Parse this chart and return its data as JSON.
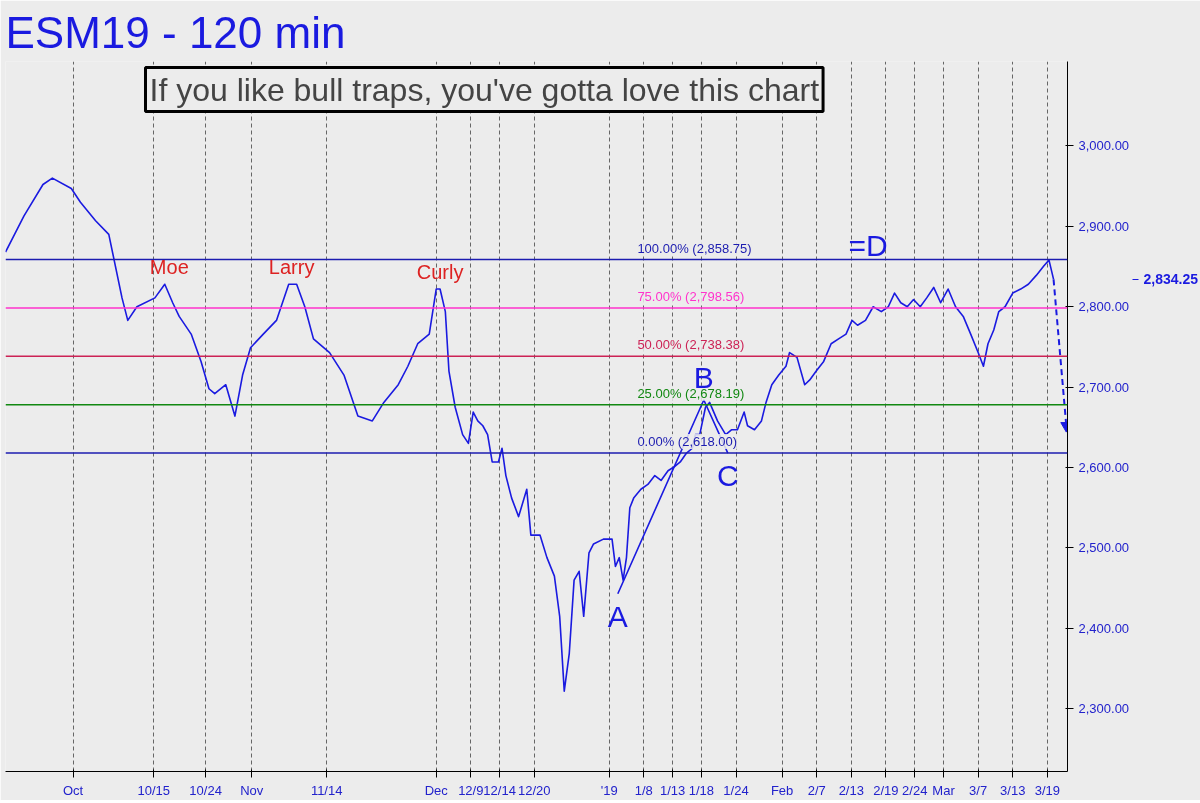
{
  "chart_data": {
    "type": "line",
    "title": "ESM19 - 120 min",
    "subtitle": "If you like bull traps, you've gotta love this chart",
    "xlim": [
      "2018-09-19T07:00",
      "2019-03-22T12:00"
    ],
    "ylim": [
      2222,
      3105
    ],
    "xticks": [
      {
        "value": "2018-10-01",
        "label": "Oct"
      },
      {
        "value": "2018-10-15",
        "label": "10/15"
      },
      {
        "value": "2018-10-24",
        "label": "10/24"
      },
      {
        "value": "2018-11-01",
        "label": "Nov"
      },
      {
        "value": "2018-11-14",
        "label": "11/14"
      },
      {
        "value": "2018-12-03",
        "label": "Dec"
      },
      {
        "value": "2018-12-09",
        "label": "12/9"
      },
      {
        "value": "2018-12-14",
        "label": "12/14"
      },
      {
        "value": "2018-12-20",
        "label": "12/20"
      },
      {
        "value": "2019-01-02",
        "label": "'19"
      },
      {
        "value": "2019-01-08",
        "label": "1/8"
      },
      {
        "value": "2019-01-13",
        "label": "1/13"
      },
      {
        "value": "2019-01-18",
        "label": "1/18"
      },
      {
        "value": "2019-01-24",
        "label": "1/24"
      },
      {
        "value": "2019-02-01",
        "label": "Feb"
      },
      {
        "value": "2019-02-07",
        "label": "2/7"
      },
      {
        "value": "2019-02-13",
        "label": "2/13"
      },
      {
        "value": "2019-02-19",
        "label": "2/19"
      },
      {
        "value": "2019-02-24",
        "label": "2/24"
      },
      {
        "value": "2019-03-01",
        "label": "Mar"
      },
      {
        "value": "2019-03-07",
        "label": "3/7"
      },
      {
        "value": "2019-03-13",
        "label": "3/13"
      },
      {
        "value": "2019-03-19",
        "label": "3/19"
      }
    ],
    "yticks": [
      {
        "value": 2300,
        "label": "2,300.00"
      },
      {
        "value": 2400,
        "label": "2,400.00"
      },
      {
        "value": 2500,
        "label": "2,500.00"
      },
      {
        "value": 2600,
        "label": "2,600.00"
      },
      {
        "value": 2700,
        "label": "2,700.00"
      },
      {
        "value": 2800,
        "label": "2,800.00"
      },
      {
        "value": 2900,
        "label": "2,900.00"
      },
      {
        "value": 3000,
        "label": "3,000.00"
      }
    ],
    "grid": "x",
    "marker": "none",
    "series": [
      {
        "color": "#1a1ae0",
        "line_style": "solid",
        "x": [
          "2018-09-19T07:00",
          "2018-09-22T12:00",
          "2018-09-25T19:00",
          "2018-09-27T10:00",
          "2018-09-30T17:00",
          "2018-10-02T07:00",
          "2018-10-04T22:00",
          "2018-10-07T05:00",
          "2018-10-09T12:00",
          "2018-10-10T12:00",
          "2018-10-12T02:00",
          "2018-10-15T05:00",
          "2018-10-16T22:00",
          "2018-10-18T07:00",
          "2018-10-19T10:00",
          "2018-10-21T12:00",
          "2018-10-23T05:00",
          "2018-10-24T14:00",
          "2018-10-25T14:00",
          "2018-10-27T12:00",
          "2018-10-29T02:00",
          "2018-10-30T10:00",
          "2018-10-31T19:00",
          "2018-11-03T00:00",
          "2018-11-05T07:00",
          "2018-11-07T10:00",
          "2018-11-08T19:00",
          "2018-11-10T05:00",
          "2018-11-11T17:00",
          "2018-11-14T12:00",
          "2018-11-17T00:00",
          "2018-11-19T10:00",
          "2018-11-21T22:00",
          "2018-11-23T22:00",
          "2018-11-26T10:00",
          "2018-11-28T02:00",
          "2018-11-29T19:00",
          "2018-12-01T19:00",
          "2018-12-03T00:00",
          "2018-12-03T16:00",
          "2018-12-04T14:00",
          "2018-12-05T05:00",
          "2018-12-06T07:00",
          "2018-12-07T14:00",
          "2018-12-08T14:00",
          "2018-12-09T10:00",
          "2018-12-10T05:00",
          "2018-12-11T02:00",
          "2018-12-11T22:00",
          "2018-12-12T17:00",
          "2018-12-13T19:00",
          "2018-12-14T10:00",
          "2018-12-15T02:00",
          "2018-12-16T02:00",
          "2018-12-17T07:00",
          "2018-12-18T17:00",
          "2018-12-19T10:00",
          "2018-12-21T00:00",
          "2018-12-22T05:00",
          "2018-12-23T12:00",
          "2018-12-24T10:00",
          "2018-12-25T05:00",
          "2018-12-26T02:00",
          "2018-12-26T22:00",
          "2018-12-27T19:00",
          "2018-12-28T14:00",
          "2018-12-29T12:00",
          "2018-12-30T07:00",
          "2019-01-01T00:00",
          "2019-01-02T12:00",
          "2019-01-03T02:00",
          "2019-01-03T18:00",
          "2019-01-04T10:00",
          "2019-01-05T00:00",
          "2019-01-05T14:00",
          "2019-01-06T06:00",
          "2019-01-07T12:00",
          "2019-01-08T17:00",
          "2019-01-09T22:00",
          "2019-01-11T00:00",
          "2019-01-12T05:00",
          "2019-01-13T07:00",
          "2019-01-14T08:00",
          "2019-01-15T10:00",
          "2019-01-16T10:00",
          "2019-01-16T23:00",
          "2019-01-17T17:00",
          "2019-01-18T17:00",
          "2019-01-19T10:00",
          "2019-01-20T19:00",
          "2019-01-22T05:00",
          "2019-01-23T05:00",
          "2019-01-24T06:00",
          "2019-01-25T10:00",
          "2019-01-26T00:00",
          "2019-01-27T05:00",
          "2019-01-28T10:00",
          "2019-01-29T05:00",
          "2019-01-30T05:00",
          "2019-01-31T10:00",
          "2019-02-01T16:00",
          "2019-02-02T07:00",
          "2019-02-03T14:00",
          "2019-02-04T22:00",
          "2019-02-05T19:00",
          "2019-02-06T22:00",
          "2019-02-08T05:00",
          "2019-02-09T12:00",
          "2019-02-10T19:00",
          "2019-02-12T02:00",
          "2019-02-13T03:00",
          "2019-02-14T02:00",
          "2019-02-15T11:00",
          "2019-02-16T19:00",
          "2019-02-18T05:00",
          "2019-02-19T10:00",
          "2019-02-20T12:00",
          "2019-02-21T14:00",
          "2019-02-22T17:00",
          "2019-02-23T19:00",
          "2019-02-24T23:00",
          "2019-02-26T02:00",
          "2019-02-27T07:00",
          "2019-02-28T12:00",
          "2019-03-01T19:00",
          "2019-03-03T02:00",
          "2019-03-04T10:00",
          "2019-03-05T17:00",
          "2019-03-07T00:00",
          "2019-03-07T22:00",
          "2019-03-08T17:00",
          "2019-03-09T17:00",
          "2019-03-10T14:00",
          "2019-03-11T16:00",
          "2019-03-13T00:00",
          "2019-03-14T09:00",
          "2019-03-15T17:00",
          "2019-03-17T02:00",
          "2019-03-18T10:00",
          "2019-03-19T07:00",
          "2019-03-20T02:00"
        ],
        "values": [
          2868,
          2913,
          2952,
          2960,
          2947,
          2930,
          2907,
          2890,
          2811,
          2783,
          2800,
          2811,
          2828,
          2805,
          2788,
          2766,
          2732,
          2698,
          2692,
          2703,
          2664,
          2715,
          2749,
          2766,
          2783,
          2828,
          2828,
          2800,
          2760,
          2743,
          2715,
          2664,
          2658,
          2681,
          2703,
          2726,
          2754,
          2766,
          2822,
          2822,
          2794,
          2720,
          2675,
          2641,
          2630,
          2669,
          2658,
          2652,
          2641,
          2607,
          2607,
          2624,
          2590,
          2562,
          2539,
          2573,
          2516,
          2516,
          2488,
          2465,
          2415,
          2322,
          2369,
          2460,
          2471,
          2415,
          2494,
          2505,
          2511,
          2511,
          2477,
          2488,
          2460,
          2488,
          2550,
          2562,
          2573,
          2579,
          2590,
          2584,
          2596,
          2601,
          2607,
          2618,
          2624,
          2641,
          2641,
          2675,
          2681,
          2658,
          2641,
          2647,
          2647,
          2669,
          2652,
          2647,
          2658,
          2681,
          2703,
          2715,
          2726,
          2743,
          2737,
          2703,
          2709,
          2720,
          2732,
          2754,
          2760,
          2766,
          2783,
          2777,
          2783,
          2800,
          2794,
          2800,
          2817,
          2805,
          2800,
          2809,
          2800,
          2811,
          2824,
          2805,
          2822,
          2800,
          2788,
          2766,
          2743,
          2726,
          2754,
          2771,
          2794,
          2800,
          2817,
          2822,
          2828,
          2839,
          2851,
          2858,
          2834
        ]
      },
      {
        "color": "#1a1ae0",
        "line_style": "solid",
        "x": [
          "2019-01-03T12:00",
          "2019-01-18T10:00",
          "2019-01-22T14:00"
        ],
        "values": [
          2443,
          2684,
          2618
        ]
      },
      {
        "color": "#1a1ae0",
        "line_style": "dashed",
        "marker": "triangle",
        "x": [
          "2019-03-20T02:00",
          "2019-03-22T07:00"
        ],
        "values": [
          2834,
          2652
        ]
      }
    ],
    "ref_lines": [
      {
        "axis": "y",
        "value": 2858.75,
        "label": "100.00% (2,858.75)",
        "color": "#1c1cb0"
      },
      {
        "axis": "y",
        "value": 2798.56,
        "label": "75.00% (2,798.56)",
        "color": "#ff33cc"
      },
      {
        "axis": "y",
        "value": 2738.38,
        "label": "50.00% (2,738.38)",
        "color": "#cc2255"
      },
      {
        "axis": "y",
        "value": 2678.19,
        "label": "25.00% (2,678.19)",
        "color": "#118811"
      },
      {
        "axis": "y",
        "value": 2618.0,
        "label": "0.00% (2,618.00)",
        "color": "#1c1cb0"
      }
    ],
    "annotations": [
      {
        "text": "Moe",
        "x": "2018-10-17T17:00",
        "y": 2828
      },
      {
        "text": "Larry",
        "x": "2018-11-07T22:00",
        "y": 2828
      },
      {
        "text": "Curly",
        "x": "2018-12-03T16:00",
        "y": 2822
      },
      {
        "text": "A",
        "x": "2019-01-03T12:00",
        "y": 2443
      },
      {
        "text": "B",
        "x": "2019-01-18T10:00",
        "y": 2684
      },
      {
        "text": "C",
        "x": "2019-01-22T14:00",
        "y": 2618
      },
      {
        "text": "=D",
        "x": "2019-02-12T12:00",
        "y": 2858.75
      },
      "2,834.25"
    ]
  }
}
